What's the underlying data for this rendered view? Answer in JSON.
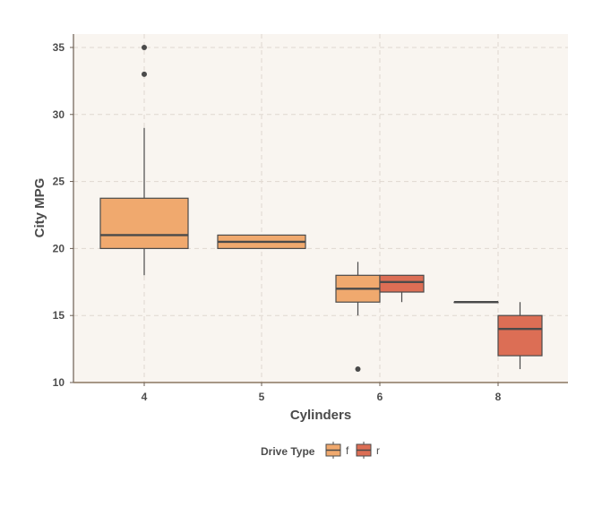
{
  "chart_data": {
    "type": "boxplot",
    "xlabel": "Cylinders",
    "ylabel": "City MPG",
    "categories": [
      "4",
      "5",
      "6",
      "8"
    ],
    "ylim": [
      10,
      36
    ],
    "yticks": [
      10,
      15,
      20,
      25,
      30,
      35
    ],
    "grid": true,
    "legend": {
      "title": "Drive Type",
      "position": "bottom"
    },
    "series": [
      {
        "name": "f",
        "color": "#f0a96e"
      },
      {
        "name": "r",
        "color": "#dc6e55"
      }
    ],
    "boxes": [
      {
        "category": "4",
        "series": "f",
        "min": 18,
        "q1": 20,
        "median": 21,
        "q3": 23.75,
        "max": 29,
        "outliers": [
          33,
          35
        ]
      },
      {
        "category": "5",
        "series": "f",
        "min": 20,
        "q1": 20,
        "median": 20.5,
        "q3": 21,
        "max": 21,
        "outliers": []
      },
      {
        "category": "6",
        "series": "f",
        "min": 15,
        "q1": 16,
        "median": 17,
        "q3": 18,
        "max": 19,
        "outliers": [
          11
        ]
      },
      {
        "category": "6",
        "series": "r",
        "min": 16,
        "q1": 16.75,
        "median": 17.5,
        "q3": 18,
        "max": 18,
        "outliers": []
      },
      {
        "category": "8",
        "series": "f",
        "min": 16,
        "q1": 16,
        "median": 16,
        "q3": 16,
        "max": 16,
        "outliers": []
      },
      {
        "category": "8",
        "series": "r",
        "min": 11,
        "q1": 12,
        "median": 14,
        "q3": 15,
        "max": 16,
        "outliers": []
      }
    ]
  }
}
